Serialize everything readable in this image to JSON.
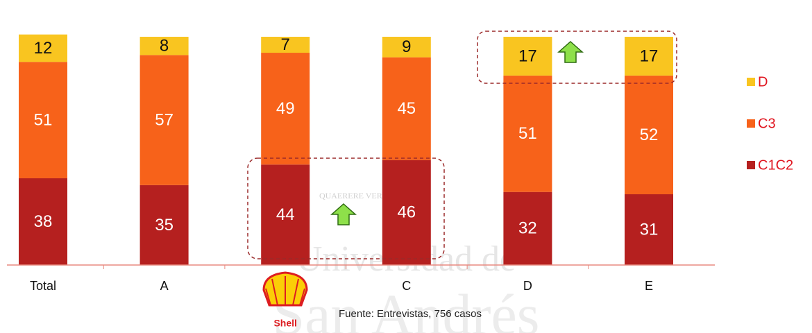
{
  "chart_data": {
    "type": "stacked_bar",
    "categories": [
      "Total",
      "A",
      "Shell",
      "C",
      "D",
      "E"
    ],
    "series": [
      {
        "name": "C1C2",
        "color": "#b5201f",
        "values": [
          38,
          35,
          44,
          46,
          32,
          31
        ]
      },
      {
        "name": "C3",
        "color": "#f7621a",
        "values": [
          51,
          57,
          49,
          45,
          51,
          52
        ]
      },
      {
        "name": "D",
        "color": "#f9c520",
        "values": [
          12,
          8,
          7,
          9,
          17,
          17
        ]
      }
    ],
    "ylim": [
      0,
      100
    ],
    "source": "Fuente: Entrevistas, 756 casos",
    "watermark": [
      "Universidad de",
      "San Andrés",
      "QUAERERE VERUM"
    ]
  }
}
